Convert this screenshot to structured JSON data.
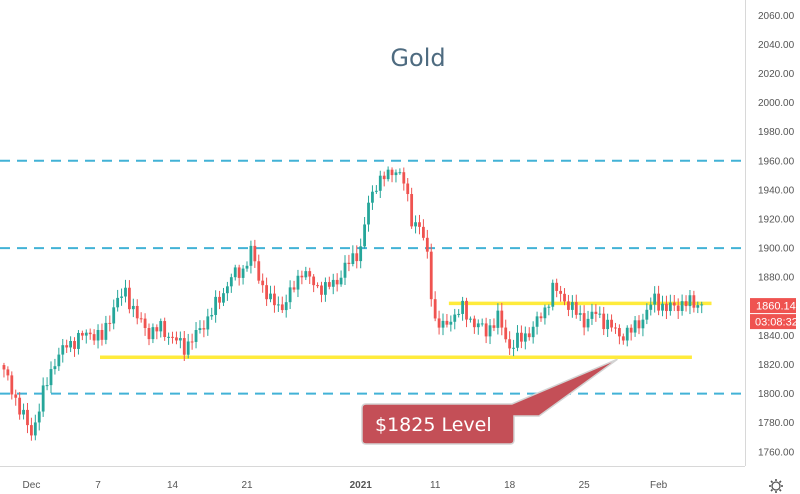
{
  "chart_data": {
    "type": "candlestick",
    "title": "Gold",
    "y_ticks": [
      1760,
      1780,
      1800,
      1820,
      1840,
      1860,
      1880,
      1900,
      1920,
      1940,
      1960,
      1980,
      2000,
      2020,
      2040,
      2060
    ],
    "y_tick_labels": [
      "1760.00",
      "1780.00",
      "1800.00",
      "1820.00",
      "1840.00",
      "1860.00",
      "1880.00",
      "1900.00",
      "1920.00",
      "1940.00",
      "1960.00",
      "1980.00",
      "2000.00",
      "2020.00",
      "2040.00",
      "2060.00"
    ],
    "ylim": [
      1745,
      2070
    ],
    "x_labels": [
      "Dec",
      "7",
      "14",
      "21",
      "2021",
      "11",
      "18",
      "25",
      "Feb"
    ],
    "x_label_bars": [
      7,
      24,
      43,
      62,
      91,
      110,
      129,
      148,
      167
    ],
    "n_bars": 179,
    "anchors": [
      [
        0,
        1815
      ],
      [
        4,
        1790
      ],
      [
        7,
        1772
      ],
      [
        10,
        1800
      ],
      [
        13,
        1823
      ],
      [
        16,
        1833
      ],
      [
        19,
        1838
      ],
      [
        22,
        1842
      ],
      [
        25,
        1838
      ],
      [
        28,
        1860
      ],
      [
        31,
        1870
      ],
      [
        34,
        1852
      ],
      [
        37,
        1842
      ],
      [
        40,
        1845
      ],
      [
        43,
        1838
      ],
      [
        46,
        1832
      ],
      [
        49,
        1840
      ],
      [
        52,
        1852
      ],
      [
        55,
        1865
      ],
      [
        58,
        1880
      ],
      [
        61,
        1885
      ],
      [
        63,
        1898
      ],
      [
        65,
        1880
      ],
      [
        68,
        1863
      ],
      [
        71,
        1860
      ],
      [
        73,
        1868
      ],
      [
        76,
        1885
      ],
      [
        79,
        1875
      ],
      [
        82,
        1872
      ],
      [
        85,
        1878
      ],
      [
        88,
        1890
      ],
      [
        91,
        1900
      ],
      [
        93,
        1930
      ],
      [
        95,
        1945
      ],
      [
        98,
        1950
      ],
      [
        100,
        1955
      ],
      [
        102,
        1945
      ],
      [
        104,
        1920
      ],
      [
        106,
        1915
      ],
      [
        108,
        1895
      ],
      [
        109,
        1870
      ],
      [
        110,
        1850
      ],
      [
        112,
        1845
      ],
      [
        114,
        1852
      ],
      [
        117,
        1858
      ],
      [
        120,
        1848
      ],
      [
        123,
        1843
      ],
      [
        126,
        1852
      ],
      [
        129,
        1832
      ],
      [
        132,
        1838
      ],
      [
        135,
        1845
      ],
      [
        138,
        1858
      ],
      [
        140,
        1872
      ],
      [
        142,
        1868
      ],
      [
        145,
        1858
      ],
      [
        148,
        1850
      ],
      [
        151,
        1855
      ],
      [
        154,
        1848
      ],
      [
        157,
        1840
      ],
      [
        160,
        1843
      ],
      [
        163,
        1852
      ],
      [
        166,
        1865
      ],
      [
        169,
        1858
      ],
      [
        171,
        1860
      ],
      [
        173,
        1862
      ]
    ],
    "levels": {
      "dashed": [
        1960,
        1900,
        1800
      ],
      "support": 1825,
      "resistance": 1862
    },
    "current_price": "1860.14",
    "countdown": "03:08:32",
    "annotation": "$1825 Level",
    "colors": {
      "up": "#26a69a",
      "down": "#ef5350",
      "dashed": "#42b2d6",
      "level_line": "#ffeb3b",
      "price_tag": "#ef5350",
      "callout_fill": "#c44f57",
      "callout_stroke": "#d3d3d3"
    }
  },
  "icons": {
    "settings": "gear-icon"
  }
}
